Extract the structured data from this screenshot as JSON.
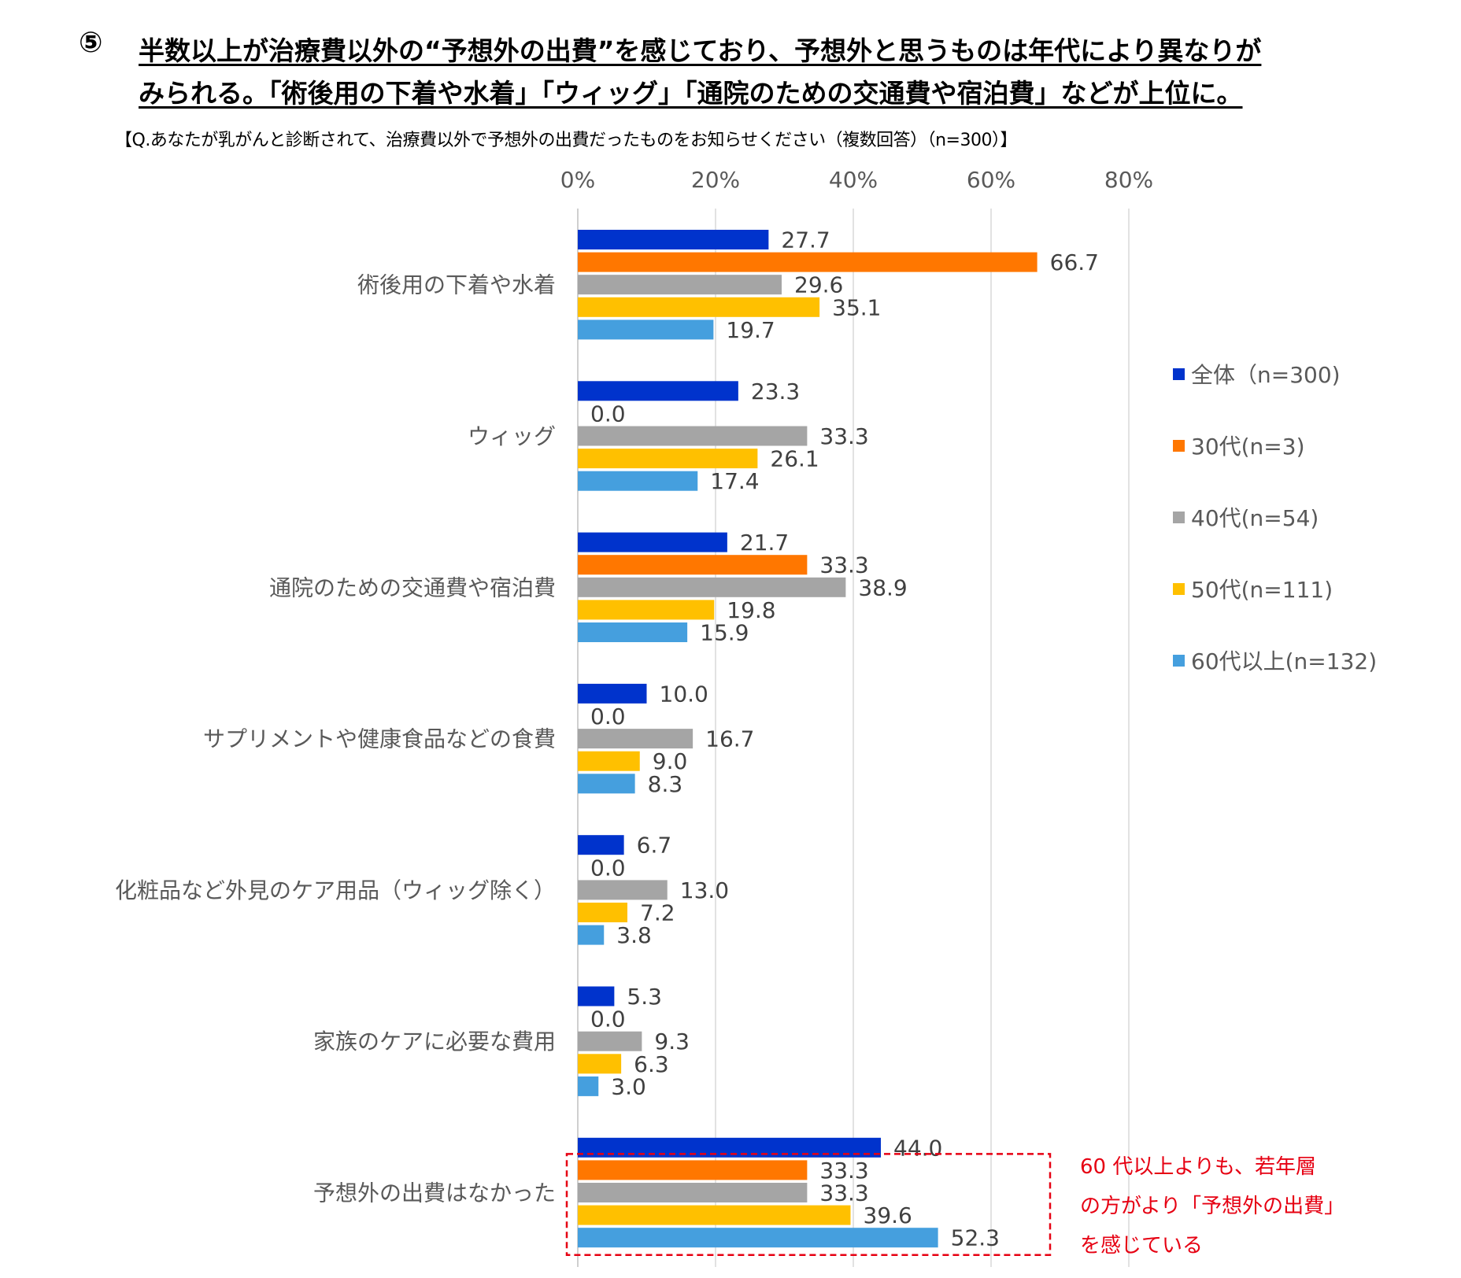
{
  "title": {
    "number": "⑤",
    "line1": "半数以上が治療費以外の“予想外の出費”を感じており、予想外と思うものは年代により異なりが",
    "line2": "みられる。「術後用の下着や水着」「ウィッグ」「通院のための交通費や宿泊費」などが上位に。"
  },
  "question": "【Q.あなたが乳がんと診断されて、治療費以外で予想外の出費だったものをお知らせください（複数回答）（n=300）】",
  "annotation": {
    "lines": [
      "60 代以上よりも、若年層",
      "の方がより「予想外の出費」",
      "を感じている"
    ],
    "color": "#e60012"
  },
  "chart_data": {
    "type": "bar",
    "orientation": "horizontal",
    "xlim": [
      0,
      80
    ],
    "x_ticks": [
      0,
      20,
      40,
      60,
      80
    ],
    "x_tick_labels": [
      "0%",
      "20%",
      "40%",
      "60%",
      "80%"
    ],
    "x_axis_position": "top",
    "grid": true,
    "legend_position": "right",
    "categories": [
      "術後用の下着や水着",
      "ウィッグ",
      "通院のための交通費や宿泊費",
      "サプリメントや健康食品などの食費",
      "化粧品など外見のケア用品（ウィッグ除く）",
      "家族のケアに必要な費用",
      "予想外の出費はなかった"
    ],
    "series": [
      {
        "name": "全体（n=300)",
        "color": "#0033cc",
        "values": [
          27.7,
          23.3,
          21.7,
          10.0,
          6.7,
          5.3,
          44.0
        ],
        "labels": [
          "27.7",
          "23.3",
          "21.7",
          "10.0",
          "6.7",
          "5.3",
          "44.0"
        ]
      },
      {
        "name": "30代(n=3)",
        "color": "#ff7700",
        "values": [
          66.7,
          0.0,
          33.3,
          0.0,
          0.0,
          0.0,
          33.3
        ],
        "labels": [
          "66.7",
          "0.0",
          "33.3",
          "0.0",
          "0.0",
          "0.0",
          "33.3"
        ]
      },
      {
        "name": "40代(n=54)",
        "color": "#a5a5a5",
        "values": [
          29.6,
          33.3,
          38.9,
          16.7,
          13.0,
          9.3,
          33.3
        ],
        "labels": [
          "29.6",
          "33.3",
          "38.9",
          "16.7",
          "13.0",
          "9.3",
          "33.3"
        ]
      },
      {
        "name": "50代(n=111)",
        "color": "#ffc000",
        "values": [
          35.1,
          26.1,
          19.8,
          9.0,
          7.2,
          6.3,
          39.6
        ],
        "labels": [
          "35.1",
          "26.1",
          "19.8",
          "9.0",
          "7.2",
          "6.3",
          "39.6"
        ]
      },
      {
        "name": "60代以上(n=132)",
        "color": "#459fde",
        "values": [
          19.7,
          17.4,
          15.9,
          8.3,
          3.8,
          3.0,
          52.3
        ],
        "labels": [
          "19.7",
          "17.4",
          "15.9",
          "8.3",
          "3.8",
          "3.0",
          "52.3"
        ]
      }
    ]
  }
}
